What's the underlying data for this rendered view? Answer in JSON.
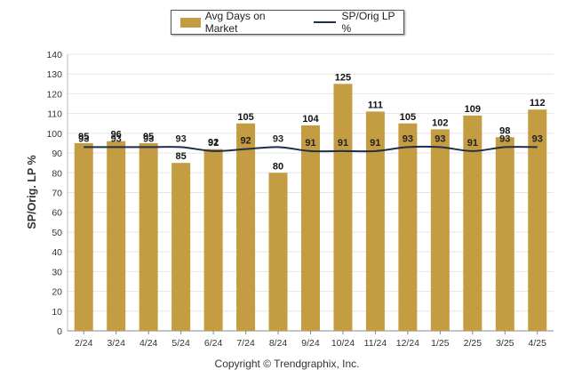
{
  "legend": {
    "bar_label": "Avg Days on Market",
    "line_label": "SP/Orig LP %"
  },
  "ylabel": "SP/Orig. LP %",
  "footer": "Copyright © Trendgraphix, Inc.",
  "colors": {
    "bar": "#C49C41",
    "line": "#1F2E4A",
    "grid": "#E5E5E5"
  },
  "chart_data": {
    "type": "bar",
    "categories": [
      "2/24",
      "3/24",
      "4/24",
      "5/24",
      "6/24",
      "7/24",
      "8/24",
      "9/24",
      "10/24",
      "11/24",
      "12/24",
      "1/25",
      "2/25",
      "3/25",
      "4/25"
    ],
    "series": [
      {
        "name": "Avg Days on Market",
        "type": "bar",
        "values": [
          95,
          96,
          95,
          85,
          92,
          105,
          80,
          104,
          125,
          111,
          105,
          102,
          109,
          98,
          112
        ]
      },
      {
        "name": "SP/Orig LP %",
        "type": "line",
        "values": [
          93,
          93,
          93,
          93,
          91,
          92,
          93,
          91,
          91,
          91,
          93,
          93,
          91,
          93,
          93
        ]
      }
    ],
    "ylabel": "SP/Orig. LP %",
    "ylim": [
      0,
      140
    ],
    "yticks": [
      0,
      10,
      20,
      30,
      40,
      50,
      60,
      70,
      80,
      90,
      100,
      110,
      120,
      130,
      140
    ],
    "grid": true,
    "legend": "top"
  }
}
